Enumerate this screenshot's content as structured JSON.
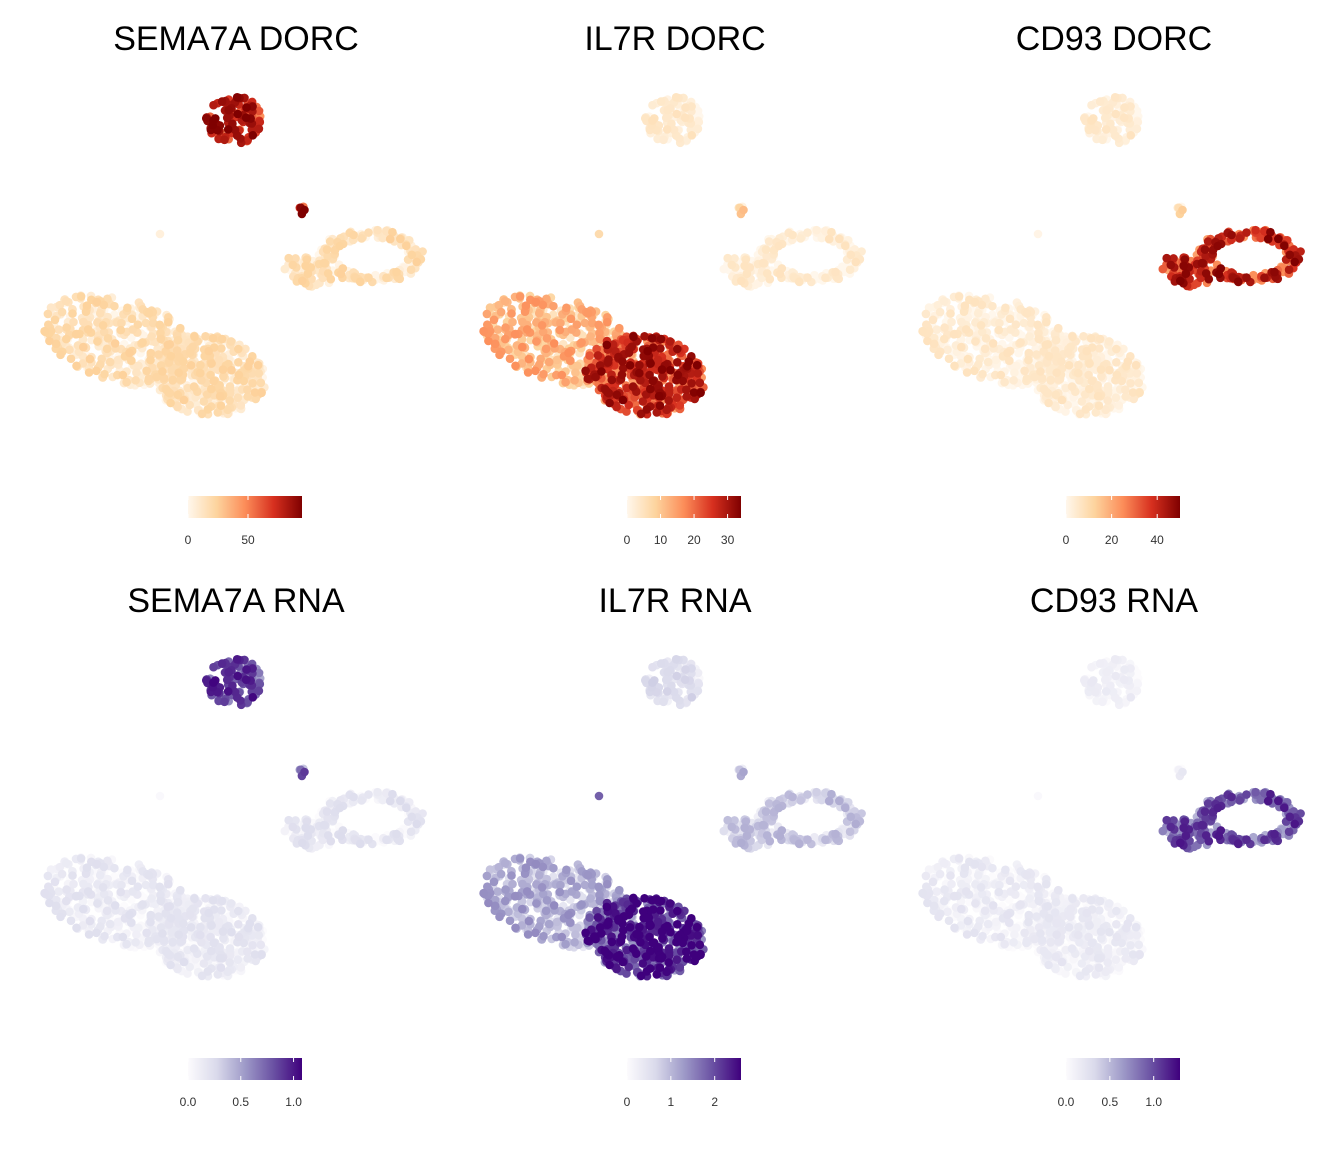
{
  "chart_data": [
    {
      "type": "scatter",
      "title": "SEMA7A DORC",
      "palette": "orange",
      "colors": [
        "#fff7ec",
        "#fdd49e",
        "#fc8d59",
        "#d7301f",
        "#7f0000"
      ],
      "color_range": [
        0,
        95
      ],
      "legend_ticks": [
        {
          "label": "0",
          "value": 0
        },
        {
          "label": "50",
          "value": 50
        }
      ],
      "cluster_levels": {
        "top": 0.75,
        "small": 0.9,
        "right": 0.12,
        "main_left": 0.12,
        "main_right": 0.12,
        "single": 0.05
      }
    },
    {
      "type": "scatter",
      "title": "IL7R DORC",
      "palette": "orange",
      "colors": [
        "#fff7ec",
        "#fdd49e",
        "#fc8d59",
        "#d7301f",
        "#7f0000"
      ],
      "color_range": [
        0,
        34
      ],
      "legend_ticks": [
        {
          "label": "0",
          "value": 0
        },
        {
          "label": "10",
          "value": 10
        },
        {
          "label": "20",
          "value": 20
        },
        {
          "label": "30",
          "value": 30
        }
      ],
      "cluster_levels": {
        "top": 0.04,
        "small": 0.2,
        "right": 0.03,
        "main_left": 0.3,
        "main_right": 0.7,
        "single": 0.2
      }
    },
    {
      "type": "scatter",
      "title": "CD93 DORC",
      "palette": "orange",
      "colors": [
        "#fff7ec",
        "#fdd49e",
        "#fc8d59",
        "#d7301f",
        "#7f0000"
      ],
      "color_range": [
        0,
        50
      ],
      "legend_ticks": [
        {
          "label": "0",
          "value": 0
        },
        {
          "label": "20",
          "value": 20
        },
        {
          "label": "40",
          "value": 40
        }
      ],
      "cluster_levels": {
        "top": 0.03,
        "small": 0.15,
        "right": 0.7,
        "main_left": 0.03,
        "main_right": 0.03,
        "single": 0.02
      }
    },
    {
      "type": "scatter",
      "title": "SEMA7A RNA",
      "palette": "purple",
      "colors": [
        "#fcfbfd",
        "#dadaeb",
        "#9e9ac8",
        "#6a51a3",
        "#3f007d"
      ],
      "color_range": [
        0,
        1.08
      ],
      "legend_ticks": [
        {
          "label": "0.0",
          "value": 0
        },
        {
          "label": "0.5",
          "value": 0.5
        },
        {
          "label": "1.0",
          "value": 1.0
        }
      ],
      "cluster_levels": {
        "top": 0.7,
        "small": 0.6,
        "right": 0.1,
        "main_left": 0.08,
        "main_right": 0.08,
        "single": 0.02
      }
    },
    {
      "type": "scatter",
      "title": "IL7R RNA",
      "palette": "purple",
      "colors": [
        "#fcfbfd",
        "#dadaeb",
        "#9e9ac8",
        "#6a51a3",
        "#3f007d"
      ],
      "color_range": [
        0,
        2.6
      ],
      "legend_ticks": [
        {
          "label": "0",
          "value": 0
        },
        {
          "label": "1",
          "value": 1
        },
        {
          "label": "2",
          "value": 2
        }
      ],
      "cluster_levels": {
        "top": 0.15,
        "small": 0.3,
        "right": 0.25,
        "main_left": 0.35,
        "main_right": 0.8,
        "single": 0.7
      }
    },
    {
      "type": "scatter",
      "title": "CD93 RNA",
      "palette": "purple",
      "colors": [
        "#fcfbfd",
        "#dadaeb",
        "#9e9ac8",
        "#6a51a3",
        "#3f007d"
      ],
      "color_range": [
        0,
        1.3
      ],
      "legend_ticks": [
        {
          "label": "0.0",
          "value": 0
        },
        {
          "label": "0.5",
          "value": 0.5
        },
        {
          "label": "1.0",
          "value": 1.0
        }
      ],
      "cluster_levels": {
        "top": 0.03,
        "small": 0.05,
        "right": 0.65,
        "main_left": 0.06,
        "main_right": 0.05,
        "single": 0.02
      }
    }
  ]
}
